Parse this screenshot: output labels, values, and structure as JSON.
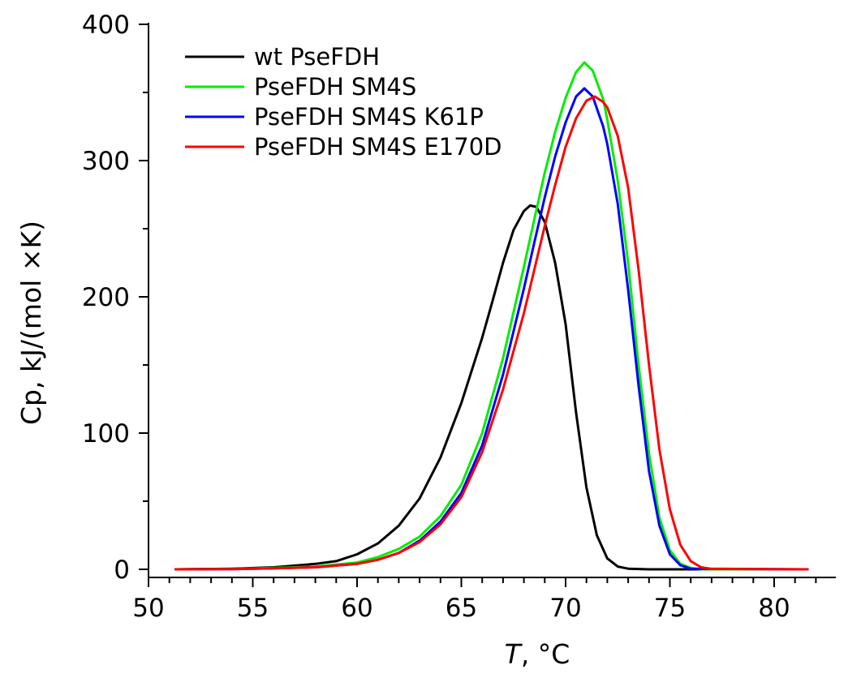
{
  "chart_data": {
    "type": "line",
    "title": "",
    "xlabel_italic": "T",
    "xlabel_rest": ", °C",
    "ylabel": "Cp, kJ/(mol ×K)",
    "xlim": [
      50,
      83
    ],
    "ylim": [
      0,
      400
    ],
    "x_ticks": [
      50,
      55,
      60,
      65,
      70,
      75,
      80
    ],
    "y_ticks": [
      0,
      100,
      200,
      300,
      400
    ],
    "x_tick_labels": [
      "50",
      "55",
      "60",
      "65",
      "70",
      "75",
      "80"
    ],
    "y_tick_labels": [
      "0",
      "100",
      "200",
      "300",
      "400"
    ],
    "grid": false,
    "legend_position": "top-left",
    "series": [
      {
        "name": "wt PseFDH",
        "color": "#000000",
        "points": [
          [
            51.3,
            0
          ],
          [
            54,
            0.5
          ],
          [
            56,
            1.5
          ],
          [
            58,
            4
          ],
          [
            59,
            6
          ],
          [
            60,
            11
          ],
          [
            61,
            19
          ],
          [
            62,
            32
          ],
          [
            63,
            52
          ],
          [
            64,
            82
          ],
          [
            65,
            122
          ],
          [
            66,
            170
          ],
          [
            66.5,
            197
          ],
          [
            67,
            225
          ],
          [
            67.5,
            249
          ],
          [
            68,
            263
          ],
          [
            68.3,
            267
          ],
          [
            68.6,
            266
          ],
          [
            69,
            255
          ],
          [
            69.5,
            225
          ],
          [
            70,
            180
          ],
          [
            70.5,
            115
          ],
          [
            71,
            60
          ],
          [
            71.5,
            25
          ],
          [
            72,
            8
          ],
          [
            72.5,
            2
          ],
          [
            73,
            0.5
          ],
          [
            74,
            0
          ],
          [
            81.6,
            0
          ]
        ]
      },
      {
        "name": "PseFDH SM4S",
        "color": "#00ee00",
        "points": [
          [
            51.3,
            0
          ],
          [
            54,
            0.3
          ],
          [
            56,
            1
          ],
          [
            58,
            2
          ],
          [
            60,
            5
          ],
          [
            61,
            9
          ],
          [
            62,
            15
          ],
          [
            63,
            24
          ],
          [
            64,
            39
          ],
          [
            65,
            62
          ],
          [
            66,
            100
          ],
          [
            67,
            155
          ],
          [
            68,
            222
          ],
          [
            68.5,
            257
          ],
          [
            69,
            291
          ],
          [
            69.5,
            321
          ],
          [
            70,
            346
          ],
          [
            70.5,
            365
          ],
          [
            70.9,
            372
          ],
          [
            71.3,
            366
          ],
          [
            71.8,
            345
          ],
          [
            72,
            330
          ],
          [
            72.5,
            285
          ],
          [
            73,
            225
          ],
          [
            73.5,
            150
          ],
          [
            74,
            85
          ],
          [
            74.5,
            38
          ],
          [
            75,
            14
          ],
          [
            75.5,
            4
          ],
          [
            76,
            1
          ],
          [
            76.5,
            0
          ],
          [
            81.6,
            0
          ]
        ]
      },
      {
        "name": "PseFDH SM4S K61P",
        "color": "#0000ff",
        "points": [
          [
            51.3,
            0
          ],
          [
            54,
            0.2
          ],
          [
            56,
            0.8
          ],
          [
            58,
            1.5
          ],
          [
            60,
            4
          ],
          [
            61,
            7
          ],
          [
            62,
            12
          ],
          [
            63,
            21
          ],
          [
            64,
            35
          ],
          [
            65,
            56
          ],
          [
            66,
            91
          ],
          [
            67,
            143
          ],
          [
            68,
            206
          ],
          [
            68.5,
            240
          ],
          [
            69,
            273
          ],
          [
            69.5,
            303
          ],
          [
            70,
            328
          ],
          [
            70.5,
            347
          ],
          [
            70.9,
            353
          ],
          [
            71.3,
            347
          ],
          [
            71.8,
            325
          ],
          [
            72,
            312
          ],
          [
            72.5,
            268
          ],
          [
            73,
            205
          ],
          [
            73.5,
            135
          ],
          [
            74,
            72
          ],
          [
            74.5,
            32
          ],
          [
            75,
            11
          ],
          [
            75.5,
            3
          ],
          [
            76,
            0.5
          ],
          [
            81.6,
            0
          ]
        ]
      },
      {
        "name": "PseFDH SM4S E170D",
        "color": "#ff0000",
        "points": [
          [
            51.3,
            0
          ],
          [
            54,
            0.2
          ],
          [
            56,
            0.8
          ],
          [
            58,
            1.5
          ],
          [
            60,
            4
          ],
          [
            61,
            7
          ],
          [
            62,
            12
          ],
          [
            63,
            20
          ],
          [
            64,
            33
          ],
          [
            65,
            53
          ],
          [
            66,
            86
          ],
          [
            67,
            132
          ],
          [
            68,
            188
          ],
          [
            68.5,
            220
          ],
          [
            69,
            252
          ],
          [
            69.5,
            282
          ],
          [
            70,
            310
          ],
          [
            70.5,
            331
          ],
          [
            71,
            344
          ],
          [
            71.4,
            347
          ],
          [
            71.8,
            343
          ],
          [
            72,
            339
          ],
          [
            72.5,
            318
          ],
          [
            73,
            280
          ],
          [
            73.5,
            220
          ],
          [
            74,
            150
          ],
          [
            74.5,
            88
          ],
          [
            75,
            44
          ],
          [
            75.5,
            18
          ],
          [
            76,
            6
          ],
          [
            76.5,
            1.5
          ],
          [
            77,
            0.3
          ],
          [
            81.6,
            0
          ]
        ]
      }
    ]
  }
}
